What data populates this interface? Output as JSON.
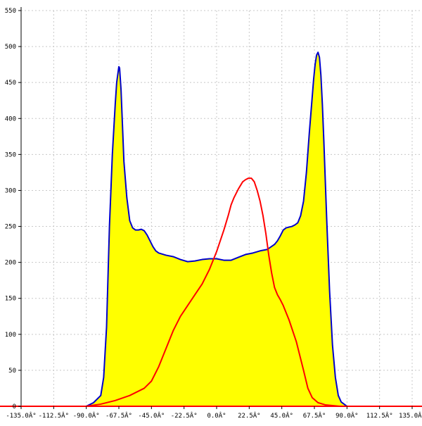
{
  "chart_data": {
    "type": "area",
    "title": "",
    "xlabel": "",
    "ylabel": "",
    "xlim": [
      -135,
      135
    ],
    "ylim": [
      0,
      550
    ],
    "grid": true,
    "x_ticks": [
      {
        "value": -135,
        "label": "-135.0Â°"
      },
      {
        "value": -112.5,
        "label": "-112.5Â°"
      },
      {
        "value": -90,
        "label": "-90.0Â°"
      },
      {
        "value": -67.5,
        "label": "-67.5Â°"
      },
      {
        "value": -45,
        "label": "-45.0Â°"
      },
      {
        "value": -22.5,
        "label": "-22.5Â°"
      },
      {
        "value": 0,
        "label": "0.0Â°"
      },
      {
        "value": 22.5,
        "label": "22.5Â°"
      },
      {
        "value": 45,
        "label": "45.0Â°"
      },
      {
        "value": 67.5,
        "label": "67.5Â°"
      },
      {
        "value": 90,
        "label": "90.0Â°"
      },
      {
        "value": 112.5,
        "label": "112.5Â°"
      },
      {
        "value": 135,
        "label": "135.0Â°"
      }
    ],
    "y_ticks": [
      {
        "value": 0,
        "label": "0"
      },
      {
        "value": 50,
        "label": "50"
      },
      {
        "value": 100,
        "label": "100"
      },
      {
        "value": 150,
        "label": "150"
      },
      {
        "value": 200,
        "label": "200"
      },
      {
        "value": 250,
        "label": "250"
      },
      {
        "value": 300,
        "label": "300"
      },
      {
        "value": 350,
        "label": "350"
      },
      {
        "value": 400,
        "label": "400"
      },
      {
        "value": 450,
        "label": "450"
      },
      {
        "value": 500,
        "label": "500"
      },
      {
        "value": 550,
        "label": "550"
      }
    ],
    "series": [
      {
        "color": "#0000cc",
        "fill": "#ffff00",
        "x": [
          -135,
          -90,
          -85,
          -80,
          -78,
          -76,
          -74,
          -72,
          -70,
          -69,
          -68,
          -67.5,
          -67,
          -66,
          -65,
          -64,
          -62,
          -60,
          -58,
          -56,
          -54,
          -52,
          -50,
          -48,
          -46,
          -44,
          -42,
          -40,
          -35,
          -30,
          -25,
          -20,
          -15,
          -10,
          -5,
          0,
          5,
          10,
          15,
          20,
          25,
          30,
          35,
          40,
          42,
          44,
          46,
          48,
          50,
          52,
          54,
          56,
          58,
          60,
          62,
          64,
          66,
          67,
          68,
          69,
          70,
          71,
          72,
          73,
          74,
          76,
          78,
          80,
          82,
          84,
          86,
          88,
          90,
          135
        ],
        "y": [
          0,
          0,
          5,
          15,
          40,
          110,
          250,
          350,
          420,
          450,
          465,
          472,
          470,
          440,
          390,
          340,
          290,
          258,
          248,
          245,
          245,
          246,
          244,
          238,
          230,
          222,
          216,
          213,
          210,
          208,
          204,
          201,
          202,
          204,
          205,
          205,
          203,
          203,
          207,
          211,
          213,
          216,
          218,
          225,
          230,
          237,
          245,
          248,
          249,
          250,
          252,
          255,
          265,
          285,
          325,
          380,
          430,
          455,
          475,
          488,
          492,
          485,
          460,
          420,
          370,
          260,
          160,
          85,
          40,
          15,
          6,
          3,
          0,
          0
        ]
      },
      {
        "color": "#ff0000",
        "x": [
          -135,
          -90,
          -80,
          -70,
          -60,
          -50,
          -45,
          -40,
          -35,
          -30,
          -25,
          -20,
          -15,
          -10,
          -5,
          0,
          5,
          8,
          10,
          12,
          15,
          18,
          20,
          22,
          24,
          26,
          28,
          30,
          32,
          34,
          36,
          38,
          40,
          42,
          44,
          46,
          50,
          55,
          60,
          63,
          66,
          70,
          75,
          80,
          85,
          90,
          135
        ],
        "y": [
          0,
          0,
          3,
          8,
          15,
          25,
          35,
          55,
          80,
          105,
          125,
          140,
          155,
          170,
          190,
          215,
          245,
          265,
          280,
          290,
          302,
          312,
          315,
          317,
          317,
          312,
          300,
          285,
          265,
          240,
          210,
          185,
          165,
          155,
          148,
          140,
          120,
          90,
          50,
          25,
          12,
          5,
          2,
          1,
          0,
          0,
          0
        ]
      }
    ]
  }
}
